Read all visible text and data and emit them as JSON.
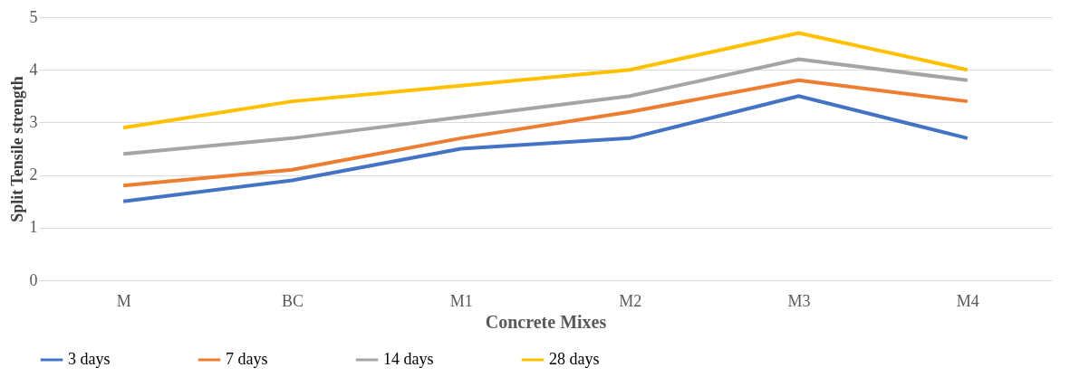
{
  "chart_data": {
    "type": "line",
    "xlabel": "Concrete Mixes",
    "ylabel": "Split Tensile strength",
    "categories": [
      "M",
      "BC",
      "M1",
      "M2",
      "M3",
      "M4"
    ],
    "series": [
      {
        "name": "3 days",
        "color": "#4472c4",
        "values": [
          1.5,
          1.9,
          2.5,
          2.7,
          3.5,
          2.7
        ]
      },
      {
        "name": "7 days",
        "color": "#ed7d31",
        "values": [
          1.8,
          2.1,
          2.7,
          3.2,
          3.8,
          3.4
        ]
      },
      {
        "name": "14 days",
        "color": "#a5a5a5",
        "values": [
          2.4,
          2.7,
          3.1,
          3.5,
          4.2,
          3.8
        ]
      },
      {
        "name": "28 days",
        "color": "#ffc000",
        "values": [
          2.9,
          3.4,
          3.7,
          4.0,
          4.7,
          4.0
        ]
      }
    ],
    "ylim": [
      0,
      5
    ],
    "yticks": [
      0,
      1,
      2,
      3,
      4,
      5
    ],
    "grid": "y",
    "legend": "bottom",
    "marker": "none",
    "line_style": "solid"
  }
}
